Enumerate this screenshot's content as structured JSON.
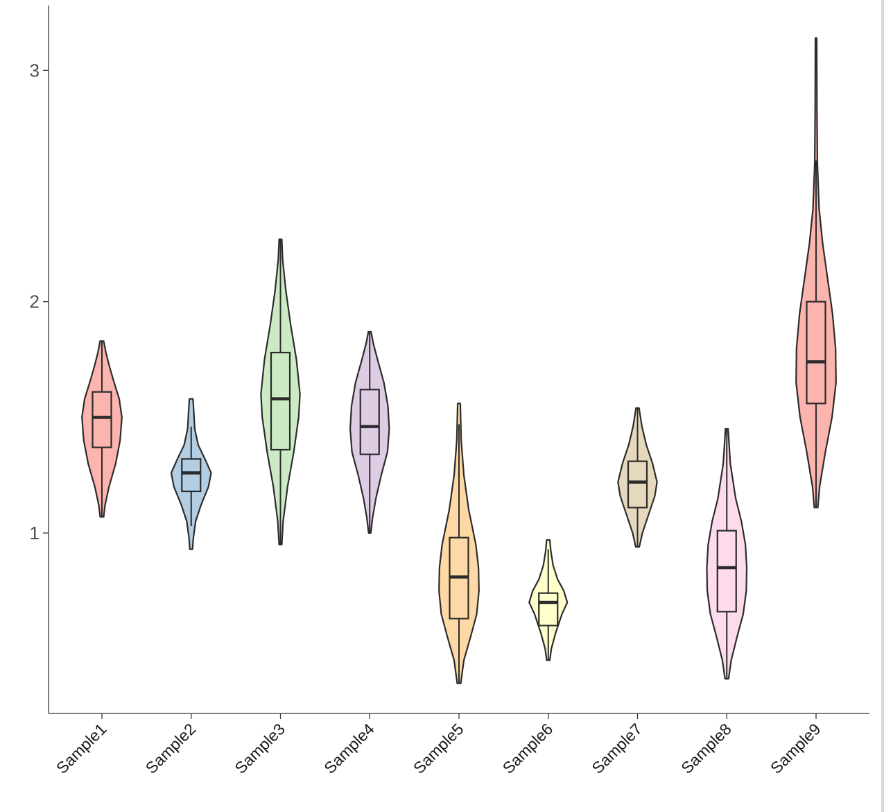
{
  "chart_data": {
    "type": "violin",
    "title": "",
    "xlabel": "",
    "ylabel": "",
    "ylim": [
      0.22,
      3.28
    ],
    "yticks": [
      1,
      2,
      3
    ],
    "grid": false,
    "legend": "none",
    "categories": [
      "Sample1",
      "Sample2",
      "Sample3",
      "Sample4",
      "Sample5",
      "Sample6",
      "Sample7",
      "Sample8",
      "Sample9"
    ],
    "series": [
      {
        "colour": "#FBB4AE",
        "min": 1.07,
        "max": 1.83,
        "q1": 1.37,
        "median": 1.5,
        "q3": 1.61,
        "whisker_low": 1.07,
        "whisker_high": 1.83,
        "density": [
          [
            1.07,
            0.08
          ],
          [
            1.12,
            0.14
          ],
          [
            1.2,
            0.32
          ],
          [
            1.3,
            0.62
          ],
          [
            1.4,
            0.82
          ],
          [
            1.5,
            0.9
          ],
          [
            1.58,
            0.78
          ],
          [
            1.66,
            0.52
          ],
          [
            1.72,
            0.34
          ],
          [
            1.78,
            0.18
          ],
          [
            1.83,
            0.08
          ]
        ]
      },
      {
        "colour": "#B3CDE3",
        "min": 0.93,
        "max": 1.58,
        "q1": 1.18,
        "median": 1.26,
        "q3": 1.32,
        "whisker_low": 1.03,
        "whisker_high": 1.46,
        "density": [
          [
            0.93,
            0.06
          ],
          [
            0.98,
            0.1
          ],
          [
            1.05,
            0.2
          ],
          [
            1.12,
            0.44
          ],
          [
            1.2,
            0.78
          ],
          [
            1.26,
            0.9
          ],
          [
            1.32,
            0.62
          ],
          [
            1.38,
            0.32
          ],
          [
            1.45,
            0.16
          ],
          [
            1.52,
            0.12
          ],
          [
            1.58,
            0.08
          ]
        ]
      },
      {
        "colour": "#CCEBC5",
        "min": 0.95,
        "max": 2.27,
        "q1": 1.36,
        "median": 1.58,
        "q3": 1.78,
        "whisker_low": 0.95,
        "whisker_high": 2.27,
        "density": [
          [
            0.95,
            0.06
          ],
          [
            1.05,
            0.12
          ],
          [
            1.2,
            0.32
          ],
          [
            1.35,
            0.6
          ],
          [
            1.5,
            0.82
          ],
          [
            1.6,
            0.88
          ],
          [
            1.75,
            0.72
          ],
          [
            1.9,
            0.46
          ],
          [
            2.05,
            0.24
          ],
          [
            2.18,
            0.1
          ],
          [
            2.27,
            0.06
          ]
        ]
      },
      {
        "colour": "#DECBE4",
        "min": 1.0,
        "max": 1.87,
        "q1": 1.34,
        "median": 1.46,
        "q3": 1.62,
        "whisker_low": 1.0,
        "whisker_high": 1.87,
        "density": [
          [
            1.0,
            0.05
          ],
          [
            1.06,
            0.12
          ],
          [
            1.15,
            0.28
          ],
          [
            1.25,
            0.52
          ],
          [
            1.35,
            0.8
          ],
          [
            1.45,
            0.88
          ],
          [
            1.55,
            0.82
          ],
          [
            1.65,
            0.64
          ],
          [
            1.74,
            0.38
          ],
          [
            1.82,
            0.16
          ],
          [
            1.87,
            0.06
          ]
        ]
      },
      {
        "colour": "#FED9A6",
        "min": 0.35,
        "max": 1.56,
        "q1": 0.63,
        "median": 0.81,
        "q3": 0.98,
        "whisker_low": 0.35,
        "whisker_high": 1.47,
        "density": [
          [
            0.35,
            0.08
          ],
          [
            0.45,
            0.22
          ],
          [
            0.55,
            0.52
          ],
          [
            0.65,
            0.8
          ],
          [
            0.75,
            0.9
          ],
          [
            0.85,
            0.88
          ],
          [
            0.95,
            0.76
          ],
          [
            1.1,
            0.44
          ],
          [
            1.25,
            0.22
          ],
          [
            1.4,
            0.1
          ],
          [
            1.56,
            0.06
          ]
        ]
      },
      {
        "colour": "#FFFFCC",
        "min": 0.45,
        "max": 0.97,
        "q1": 0.6,
        "median": 0.7,
        "q3": 0.74,
        "whisker_low": 0.45,
        "whisker_high": 0.93,
        "density": [
          [
            0.45,
            0.07
          ],
          [
            0.5,
            0.14
          ],
          [
            0.57,
            0.34
          ],
          [
            0.65,
            0.62
          ],
          [
            0.7,
            0.86
          ],
          [
            0.75,
            0.7
          ],
          [
            0.8,
            0.42
          ],
          [
            0.86,
            0.22
          ],
          [
            0.92,
            0.12
          ],
          [
            0.97,
            0.07
          ]
        ]
      },
      {
        "colour": "#E5D8BD",
        "min": 0.94,
        "max": 1.54,
        "q1": 1.11,
        "median": 1.22,
        "q3": 1.31,
        "whisker_low": 0.94,
        "whisker_high": 1.54,
        "density": [
          [
            0.94,
            0.08
          ],
          [
            1.0,
            0.22
          ],
          [
            1.08,
            0.5
          ],
          [
            1.16,
            0.78
          ],
          [
            1.22,
            0.88
          ],
          [
            1.3,
            0.68
          ],
          [
            1.38,
            0.4
          ],
          [
            1.46,
            0.2
          ],
          [
            1.54,
            0.07
          ]
        ]
      },
      {
        "colour": "#FDDAEC",
        "min": 0.37,
        "max": 1.45,
        "q1": 0.66,
        "median": 0.85,
        "q3": 1.01,
        "whisker_low": 0.37,
        "whisker_high": 1.45,
        "density": [
          [
            0.37,
            0.08
          ],
          [
            0.45,
            0.2
          ],
          [
            0.55,
            0.46
          ],
          [
            0.65,
            0.74
          ],
          [
            0.75,
            0.88
          ],
          [
            0.85,
            0.9
          ],
          [
            0.95,
            0.84
          ],
          [
            1.05,
            0.66
          ],
          [
            1.15,
            0.4
          ],
          [
            1.3,
            0.16
          ],
          [
            1.45,
            0.06
          ]
        ]
      },
      {
        "colour": "#FBB4AE",
        "min": 1.11,
        "max": 3.14,
        "q1": 1.56,
        "median": 1.74,
        "q3": 2.0,
        "whisker_low": 1.11,
        "whisker_high": 2.61,
        "density": [
          [
            1.11,
            0.08
          ],
          [
            1.2,
            0.16
          ],
          [
            1.35,
            0.42
          ],
          [
            1.5,
            0.72
          ],
          [
            1.65,
            0.9
          ],
          [
            1.8,
            0.88
          ],
          [
            1.95,
            0.74
          ],
          [
            2.1,
            0.52
          ],
          [
            2.25,
            0.3
          ],
          [
            2.4,
            0.14
          ],
          [
            2.6,
            0.06
          ],
          [
            2.85,
            0.04
          ],
          [
            3.14,
            0.03
          ]
        ]
      }
    ]
  }
}
